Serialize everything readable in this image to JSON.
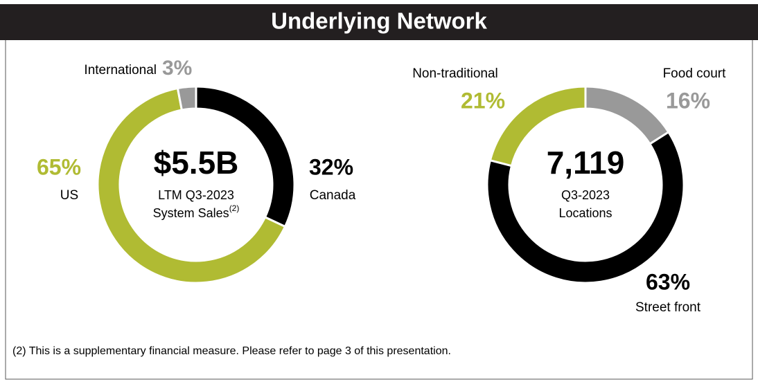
{
  "title": "Underlying Network",
  "footnote": "(2) This is a supplementary financial measure. Please refer to page 3 of this presentation.",
  "chart_data": [
    {
      "type": "donut",
      "center_value": "$5.5B",
      "center_lines": [
        "LTM Q3-2023",
        "System Sales"
      ],
      "center_superscript": "(2)",
      "categories": [
        "Canada",
        "US",
        "International"
      ],
      "values": [
        32,
        65,
        3
      ],
      "value_labels": [
        "32%",
        "65%",
        "3%"
      ],
      "colors": [
        "#000000",
        "#b0bb33",
        "#999999"
      ]
    },
    {
      "type": "donut",
      "center_value": "7,119",
      "center_lines": [
        "Q3-2023",
        "Locations"
      ],
      "categories": [
        "Food court",
        "Street front",
        "Non-traditional"
      ],
      "values": [
        16,
        63,
        21
      ],
      "value_labels": [
        "16%",
        "63%",
        "21%"
      ],
      "colors": [
        "#999999",
        "#000000",
        "#b0bb33"
      ]
    }
  ]
}
